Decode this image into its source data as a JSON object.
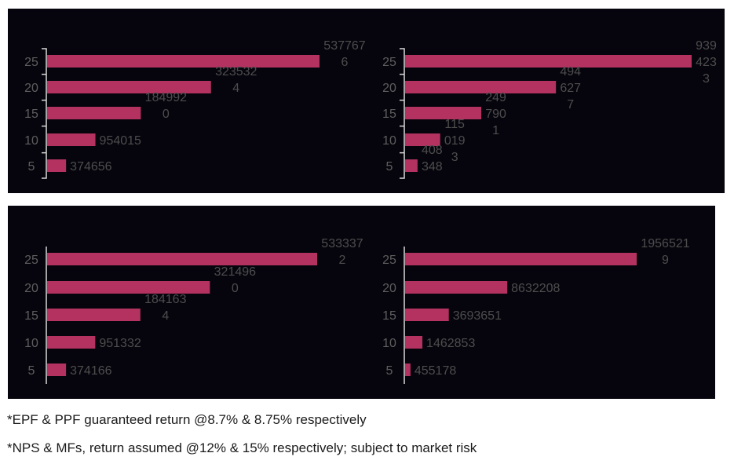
{
  "chart_data": [
    {
      "type": "bar",
      "orientation": "horizontal",
      "categories": [
        "25",
        "20",
        "15",
        "10",
        "5"
      ],
      "values": [
        5377676,
        3235324,
        1849920,
        954015,
        374656
      ],
      "value_labels": [
        [
          "537767",
          "6"
        ],
        [
          "323532",
          "4"
        ],
        [
          "184992",
          "0"
        ],
        [
          "954015"
        ],
        [
          "374656"
        ]
      ],
      "axis_style": "bracket"
    },
    {
      "type": "bar",
      "orientation": "horizontal",
      "categories": [
        "25",
        "20",
        "15",
        "10",
        "5"
      ],
      "values": [
        9394233,
        4946277,
        2497901,
        1150193,
        408348
      ],
      "value_labels": [
        [
          "939",
          "423",
          "3"
        ],
        [
          "494",
          "627",
          "7"
        ],
        [
          "249",
          "790",
          "1"
        ],
        [
          "115",
          "019",
          "3"
        ],
        [
          "408",
          "348"
        ]
      ],
      "axis_style": "bracket"
    },
    {
      "type": "bar",
      "orientation": "horizontal",
      "categories": [
        "25",
        "20",
        "15",
        "10",
        "5"
      ],
      "values": [
        5333372,
        3214960,
        1841634,
        951332,
        374166
      ],
      "value_labels": [
        [
          "533337",
          "2"
        ],
        [
          "321496",
          "0"
        ],
        [
          "184163",
          "4"
        ],
        [
          "951332"
        ],
        [
          "374166"
        ]
      ],
      "axis_style": "line"
    },
    {
      "type": "bar",
      "orientation": "horizontal",
      "categories": [
        "25",
        "20",
        "15",
        "10",
        "5"
      ],
      "values": [
        19565219,
        8632208,
        3693651,
        1462853,
        455178
      ],
      "value_labels": [
        [
          "1956521",
          "9"
        ],
        [
          "8632208"
        ],
        [
          "3693651"
        ],
        [
          "1462853"
        ],
        [
          "455178"
        ]
      ],
      "axis_style": "line"
    }
  ],
  "colors": {
    "bar": "#b3325f",
    "panel_background": "#06050d",
    "label": "#5e5e5e"
  },
  "footnotes": [
    "*EPF & PPF guaranteed return @8.7% & 8.75% respectively",
    "*NPS & MFs, return assumed @12% & 15% respectively; subject to market risk"
  ]
}
